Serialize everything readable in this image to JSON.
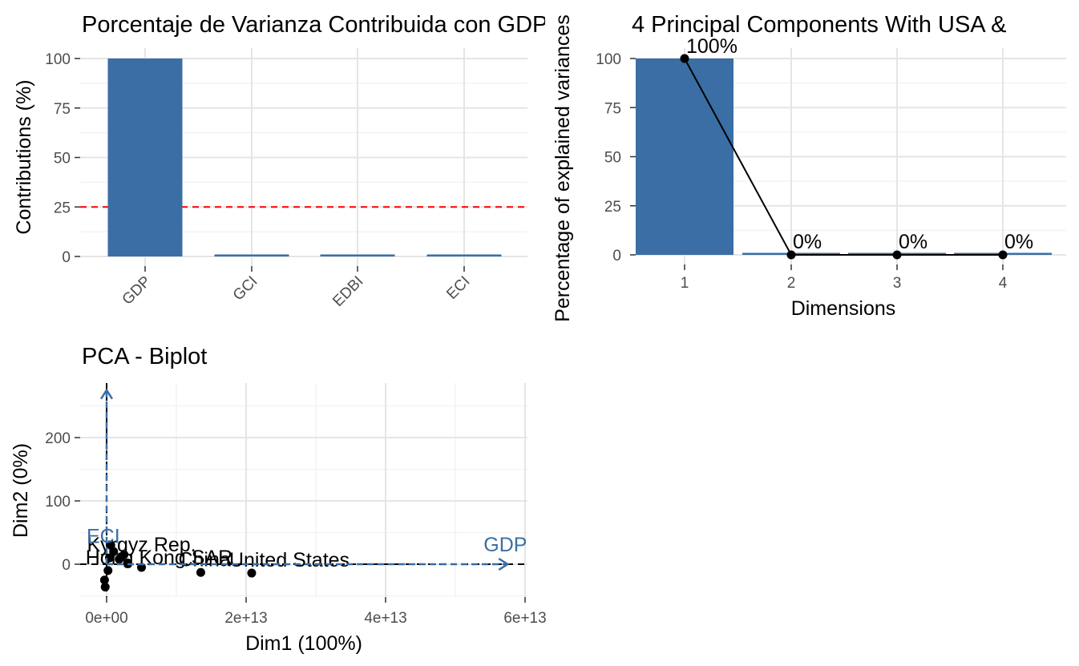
{
  "chart_data": [
    {
      "type": "bar",
      "title": "Porcentaje de Varianza Contribuida con GDP y todas las Observaciones",
      "xlabel": "",
      "ylabel": "Contributions (%)",
      "categories": [
        "GDP",
        "GCI",
        "EDBI",
        "ECI"
      ],
      "values": [
        100,
        0,
        0,
        0
      ],
      "ylim": [
        0,
        100
      ],
      "yticks": [
        0,
        25,
        50,
        75,
        100
      ],
      "reference_line": {
        "value": 25,
        "color": "#FF0000",
        "style": "dashed"
      },
      "bar_color": "#3A6EA5",
      "grid": true
    },
    {
      "type": "bar",
      "title": "4 Principal Components With USA &",
      "xlabel": "Dimensions",
      "ylabel": "Percentage of explained variances",
      "categories": [
        "1",
        "2",
        "3",
        "4"
      ],
      "values": [
        100,
        0,
        0,
        0
      ],
      "data_labels": [
        "100%",
        "0%",
        "0%",
        "0%"
      ],
      "ylim": [
        0,
        100
      ],
      "yticks": [
        0,
        25,
        50,
        75,
        100
      ],
      "line_overlay": true,
      "bar_color": "#3A6EA5",
      "grid": true
    },
    {
      "type": "scatter",
      "title": "PCA - Biplot",
      "xlabel": "Dim1 (100%)",
      "ylabel": "Dim2 (0%)",
      "xlim": [
        -1800000000000.0,
        61000000000000.0
      ],
      "ylim": [
        -50,
        280
      ],
      "xticks": [
        0,
        20000000000000.0,
        40000000000000.0,
        60000000000000.0
      ],
      "xtick_labels": [
        "0e+00",
        "2e+13",
        "4e+13",
        "6e+13"
      ],
      "yticks": [
        0,
        100,
        200
      ],
      "points": [
        {
          "x": 20800000000000.0,
          "y": -14,
          "label": "United States"
        },
        {
          "x": 13500000000000.0,
          "y": -13,
          "label": "China"
        },
        {
          "x": 5000000000000.0,
          "y": -5,
          "label": ""
        },
        {
          "x": 3000000000000.0,
          "y": 2,
          "label": ""
        },
        {
          "x": 1800000000000.0,
          "y": 8,
          "label": ""
        },
        {
          "x": 1000000000000.0,
          "y": 20,
          "label": ""
        },
        {
          "x": 400000000000.0,
          "y": 10,
          "label": "Kyrgyz Rep."
        },
        {
          "x": 200000000000.0,
          "y": -10,
          "label": "Hong Kong SAR"
        },
        {
          "x": -200000000000.0,
          "y": -36,
          "label": ""
        },
        {
          "x": -300000000000.0,
          "y": -25,
          "label": ""
        },
        {
          "x": 600000000000.0,
          "y": 30,
          "label": ""
        },
        {
          "x": 2500000000000.0,
          "y": 15,
          "label": ""
        }
      ],
      "vectors": [
        {
          "name": "GDP",
          "x": 57500000000000.0,
          "y": 0
        },
        {
          "name": "ECI",
          "x": 0,
          "y": 275
        }
      ],
      "grid": true
    }
  ]
}
